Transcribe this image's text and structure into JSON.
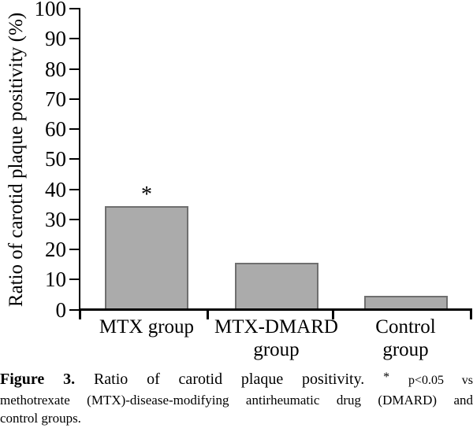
{
  "chart_data": {
    "type": "bar",
    "categories": [
      "MTX group",
      "MTX-DMARD\ngroup",
      "Control\ngroup"
    ],
    "values": [
      34.5,
      15.5,
      4.5
    ],
    "title": "",
    "xlabel": "",
    "ylabel": "Ratio of carotid plaque positivity (%)",
    "ylim": [
      0,
      100
    ],
    "ytick_step": 10,
    "grid": false,
    "legend": "none",
    "bar_fill": "#ababab",
    "bar_border": "#6f6f6f",
    "annotations": [
      {
        "text": "*",
        "bar_index": 0
      }
    ]
  },
  "caption": {
    "figure_label": "Figure 3.",
    "title": "Ratio of carotid plaque positivity.",
    "note_marker": "*",
    "note_text": "p<0.05 vs",
    "note_line2": "methotrexate (MTX)-disease-modifying antirheumatic drug (DMARD) and",
    "note_line3": "control groups."
  }
}
